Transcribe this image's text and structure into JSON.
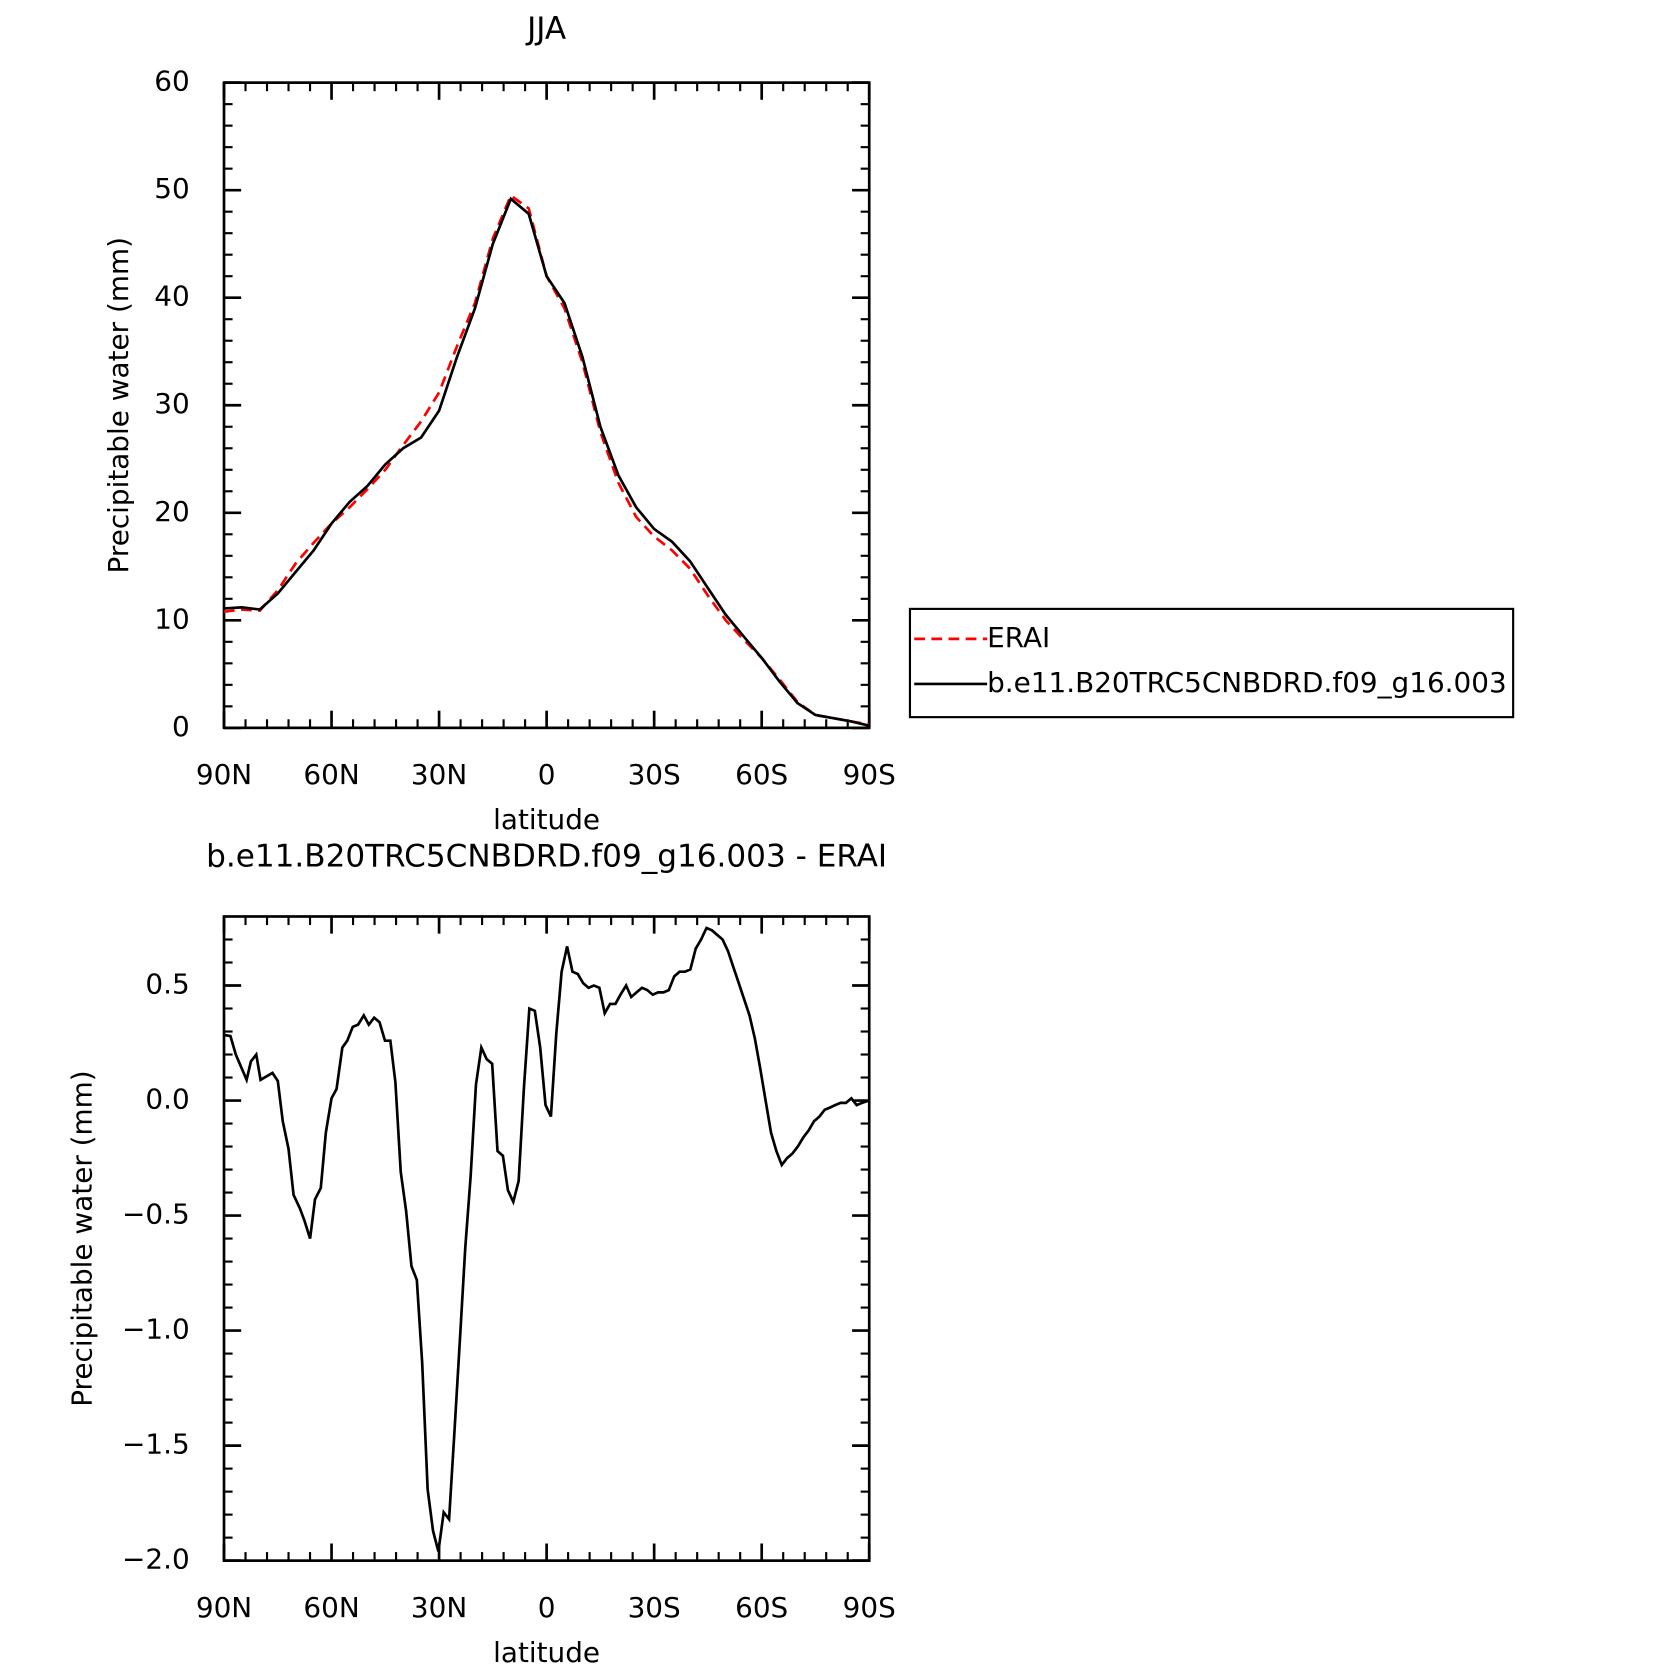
{
  "chart_data": [
    {
      "type": "line",
      "title": "JJA",
      "xlabel": "latitude",
      "ylabel": "Precipitable water (mm)",
      "x": [
        90,
        85,
        80,
        75,
        70,
        65,
        60,
        55,
        50,
        45,
        40,
        35,
        30,
        25,
        20,
        15,
        10,
        5,
        0,
        -5,
        -10,
        -15,
        -20,
        -25,
        -30,
        -35,
        -40,
        -45,
        -50,
        -55,
        -60,
        -65,
        -70,
        -75,
        -80,
        -85,
        -90
      ],
      "series": [
        {
          "name": "ERAI",
          "color": "#ff0000",
          "dashed": true,
          "values": [
            10.8,
            11.0,
            10.9,
            12.8,
            15.3,
            17.2,
            19,
            20.5,
            22.2,
            24,
            26.3,
            28.5,
            31.2,
            35.5,
            39.5,
            45.5,
            49.5,
            48.3,
            42,
            39,
            34,
            27.5,
            22.8,
            19.6,
            17.8,
            16.5,
            14.8,
            12.3,
            10,
            8.2,
            6.5,
            4.5,
            2.4,
            1.2,
            0.9,
            0.6,
            0.3
          ]
        },
        {
          "name": "b.e11.B20TRC5CNBDRD.f09_g16.003",
          "color": "#000000",
          "dashed": false,
          "values": [
            11.1,
            11.2,
            11.0,
            12.5,
            14.5,
            16.5,
            19,
            21,
            22.5,
            24.5,
            26,
            27,
            29.5,
            34.5,
            39,
            45,
            49.2,
            47.8,
            42,
            39.5,
            34.5,
            28,
            23.5,
            20.5,
            18.5,
            17.3,
            15.5,
            13,
            10.5,
            8.5,
            6.5,
            4.3,
            2.3,
            1.2,
            0.9,
            0.6,
            0.2
          ]
        }
      ],
      "xlim": [
        90,
        -90
      ],
      "xticks": [
        {
          "value": 90,
          "label": "90N"
        },
        {
          "value": 60,
          "label": "60N"
        },
        {
          "value": 30,
          "label": "30N"
        },
        0,
        {
          "value": -30,
          "label": "30S"
        },
        {
          "value": -60,
          "label": "60S"
        },
        {
          "value": -90,
          "label": "90S"
        }
      ],
      "ylim": [
        0,
        60
      ],
      "yticks": [
        0,
        10,
        20,
        30,
        40,
        50,
        60
      ],
      "legend": "right"
    },
    {
      "type": "line",
      "title": "b.e11.B20TRC5CNBDRD.f09_g16.003 - ERAI",
      "xlabel": "latitude",
      "ylabel": "Precipitable water (mm)",
      "x": [
        90,
        88.2,
        86.7,
        83.7,
        82.5,
        81,
        79.8,
        76.5,
        75,
        73.6,
        72,
        70.6,
        68.8,
        67.6,
        66,
        64.6,
        63,
        61.6,
        60,
        58.6,
        57,
        55.6,
        54.1,
        52.6,
        51,
        49.6,
        48.1,
        46.6,
        45.1,
        43.6,
        42.2,
        40.7,
        39.2,
        37.7,
        36.2,
        34.7,
        33.2,
        31.7,
        30.2,
        28.7,
        27.2,
        25.7,
        24.2,
        22.7,
        21.2,
        19.7,
        18.2,
        16.7,
        15.2,
        13.7,
        12.2,
        10.8,
        9.3,
        7.8,
        6.3,
        4.8,
        3.3,
        1.8,
        0.3,
        -1.2,
        -2.7,
        -4.2,
        -5.7,
        -7.2,
        -8.7,
        -10.2,
        -11.7,
        -13.2,
        -14.7,
        -16.2,
        -17.7,
        -19.2,
        -20.6,
        -22.2,
        -23.6,
        -25.1,
        -26.6,
        -28.1,
        -29.6,
        -31.1,
        -32.6,
        -34.1,
        -35.6,
        -37.1,
        -38.6,
        -40.1,
        -41.6,
        -43.1,
        -44.6,
        -46.1,
        -47.6,
        -49.1,
        -50.6,
        -52.1,
        -53.6,
        -55.1,
        -56.6,
        -58.1,
        -59.6,
        -61.1,
        -62.6,
        -64.1,
        -65.6,
        -67.1,
        -68.6,
        -70.1,
        -71.6,
        -73.1,
        -74.6,
        -76.1,
        -77.6,
        -79.1,
        -80.5,
        -82,
        -83.5,
        -85,
        -86.5,
        -88,
        -90
      ],
      "color": "#000000",
      "values": [
        0.285,
        0.28,
        0.2,
        0.09,
        0.17,
        0.2,
        0.09,
        0.12,
        0.085,
        -0.09,
        -0.21,
        -0.41,
        -0.47,
        -0.52,
        -0.6,
        -0.43,
        -0.38,
        -0.14,
        0.01,
        0.05,
        0.23,
        0.26,
        0.32,
        0.33,
        0.37,
        0.33,
        0.36,
        0.34,
        0.26,
        0.26,
        0.08,
        -0.31,
        -0.48,
        -0.72,
        -0.78,
        -1.14,
        -1.69,
        -1.87,
        -1.96,
        -1.79,
        -1.82,
        -1.44,
        -1.04,
        -0.64,
        -0.33,
        0.07,
        0.23,
        0.18,
        0.16,
        -0.22,
        -0.24,
        -0.39,
        -0.44,
        -0.35,
        0.06,
        0.4,
        0.39,
        0.23,
        -0.02,
        -0.07,
        0.29,
        0.56,
        0.67,
        0.56,
        0.55,
        0.51,
        0.49,
        0.5,
        0.49,
        0.38,
        0.42,
        0.42,
        0.46,
        0.5,
        0.45,
        0.47,
        0.49,
        0.48,
        0.46,
        0.47,
        0.47,
        0.48,
        0.54,
        0.56,
        0.56,
        0.57,
        0.66,
        0.7,
        0.75,
        0.74,
        0.72,
        0.7,
        0.65,
        0.58,
        0.51,
        0.44,
        0.37,
        0.27,
        0.14,
        0,
        -0.14,
        -0.22,
        -0.28,
        -0.25,
        -0.23,
        -0.2,
        -0.16,
        -0.13,
        -0.09,
        -0.07,
        -0.04,
        -0.03,
        -0.02,
        -0.01,
        -0.01,
        0.01,
        -0.02,
        -0.01,
        0
      ],
      "xlim": [
        90,
        -90
      ],
      "xticks": [
        {
          "value": 90,
          "label": "90N"
        },
        {
          "value": 60,
          "label": "60N"
        },
        {
          "value": 30,
          "label": "30N"
        },
        0,
        {
          "value": -30,
          "label": "30S"
        },
        {
          "value": -60,
          "label": "60S"
        },
        {
          "value": -90,
          "label": "90S"
        }
      ],
      "ylim": [
        -2,
        0.8
      ],
      "yticks": [
        {
          "value": -2,
          "label": "−2.0"
        },
        {
          "value": -1.5,
          "label": "−1.5"
        },
        {
          "value": -1,
          "label": "−1.0"
        },
        {
          "value": -0.5,
          "label": "−0.5"
        },
        {
          "value": 0,
          "label": "0.0"
        },
        0.5
      ]
    }
  ]
}
